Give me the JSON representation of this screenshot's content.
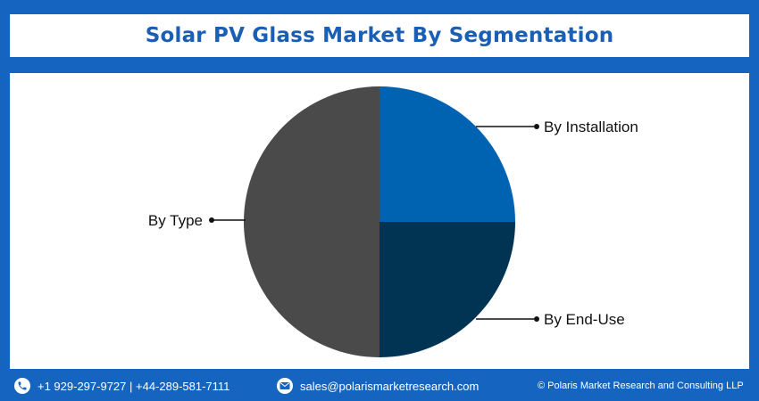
{
  "header": {
    "title": "Solar PV Glass Market By Segmentation"
  },
  "chart_data": {
    "type": "pie",
    "title": "Solar PV Glass Market By Segmentation",
    "slices": [
      {
        "label": "By Installation",
        "value": 25,
        "color": "#0063b1"
      },
      {
        "label": "By End-Use",
        "value": 25,
        "color": "#013453"
      },
      {
        "label": "By Type",
        "value": 50,
        "color": "#4a4a4a"
      }
    ]
  },
  "footer": {
    "phone": "+1 929-297-9727 | +44-289-581-7111",
    "email": "sales@polarismarketresearch.com",
    "copyright": "© Polaris Market Research and Consulting LLP",
    "phone_icon": "phone-icon",
    "email_icon": "mail-icon"
  }
}
